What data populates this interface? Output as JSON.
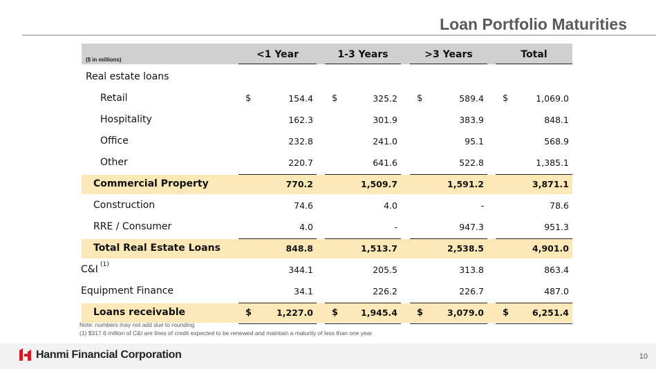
{
  "header": {
    "title": "Loan Portfolio Maturities"
  },
  "table": {
    "unit_note": "($ in millions)",
    "columns": [
      "<1 Year",
      "1-3 Years",
      ">3 Years",
      "Total"
    ],
    "currency": "$",
    "rows": [
      {
        "label": "Real estate loans"
      },
      {
        "label": "Retail",
        "values": [
          "154.4",
          "325.2",
          "589.4",
          "1,069.0"
        ]
      },
      {
        "label": "Hospitality",
        "values": [
          "162.3",
          "301.9",
          "383.9",
          "848.1"
        ]
      },
      {
        "label": "Office",
        "values": [
          "232.8",
          "241.0",
          "95.1",
          "568.9"
        ]
      },
      {
        "label": "Other",
        "values": [
          "220.7",
          "641.6",
          "522.8",
          "1,385.1"
        ]
      },
      {
        "label": "Commercial Property",
        "values": [
          "770.2",
          "1,509.7",
          "1,591.2",
          "3,871.1"
        ]
      },
      {
        "label": "Construction",
        "values": [
          "74.6",
          "4.0",
          "-",
          "78.6"
        ]
      },
      {
        "label": "RRE / Consumer",
        "values": [
          "4.0",
          "-",
          "947.3",
          "951.3"
        ]
      },
      {
        "label": "Total Real Estate Loans",
        "values": [
          "848.8",
          "1,513.7",
          "2,538.5",
          "4,901.0"
        ]
      },
      {
        "label": "C&I",
        "superscript": "(1)",
        "values": [
          "344.1",
          "205.5",
          "313.8",
          "863.4"
        ]
      },
      {
        "label": "Equipment Finance",
        "values": [
          "34.1",
          "226.2",
          "226.7",
          "487.0"
        ]
      },
      {
        "label": "Loans receivable",
        "values": [
          "1,227.0",
          "1,945.4",
          "3,079.0",
          "6,251.4"
        ]
      }
    ]
  },
  "notes": [
    "Note: numbers may not add due to rounding",
    "(1)   $317.6 million of C&I are lines of credit expected to be renewed and maintain a maturity of less than one year"
  ],
  "footer": {
    "company": "Hanmi Financial Corporation",
    "page": "10"
  }
}
